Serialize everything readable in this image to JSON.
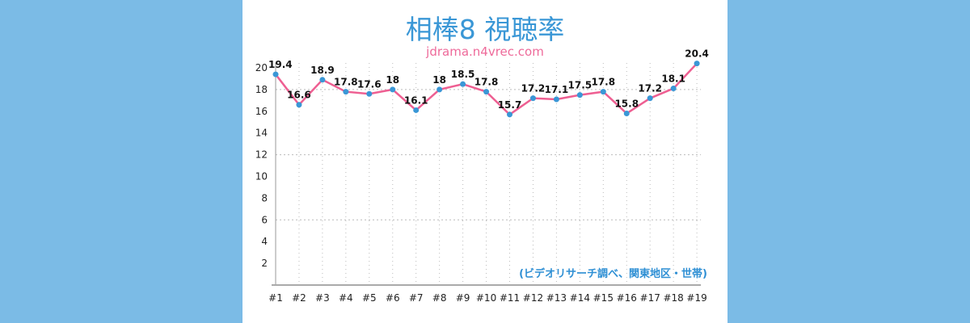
{
  "chart_data": {
    "type": "line",
    "title": "相棒8 視聴率",
    "subtitle": "jdrama.n4vrec.com",
    "annotation": "(ビデオリサーチ調べ、関東地区・世帯)",
    "categories": [
      "#1",
      "#2",
      "#3",
      "#4",
      "#5",
      "#6",
      "#7",
      "#8",
      "#9",
      "#10",
      "#11",
      "#12",
      "#13",
      "#14",
      "#15",
      "#16",
      "#17",
      "#18",
      "#19"
    ],
    "values": [
      19.4,
      16.6,
      18.9,
      17.8,
      17.6,
      18,
      16.1,
      18,
      18.5,
      17.8,
      15.7,
      17.2,
      17.1,
      17.5,
      17.8,
      15.8,
      17.2,
      18.1,
      20.4
    ],
    "ylim": [
      0,
      20
    ],
    "yticks": [
      2,
      4,
      6,
      8,
      10,
      12,
      14,
      16,
      18,
      20
    ],
    "grid": "dotted vertical per category, horizontal at 6/12/18",
    "line_color": "#ee5f92",
    "marker_color": "#3a97d6",
    "legend": "none"
  }
}
